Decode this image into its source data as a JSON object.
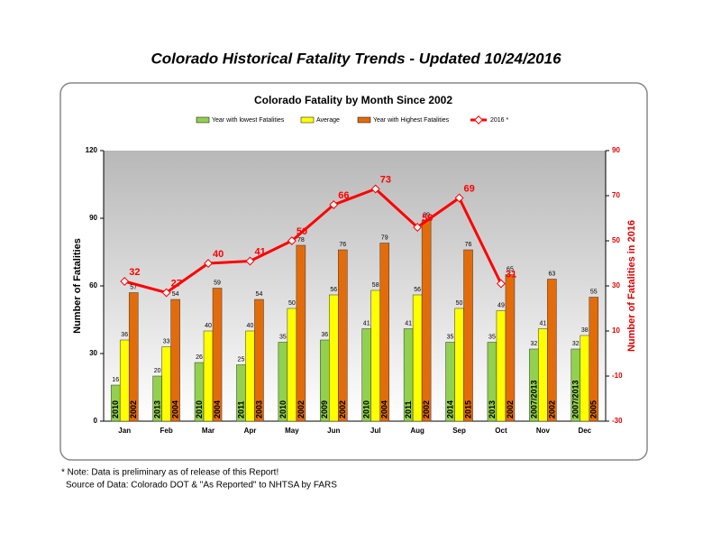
{
  "chart_data": {
    "type": "bar-line",
    "title": "Colorado Historical Fatality Trends - Updated 10/24/2016",
    "subtitle": "Colorado Fatality by Month Since 2002",
    "ylabel": "Number of Fatalities",
    "y2label": "Number of Fatalities in 2016",
    "categories": [
      "Jan",
      "Feb",
      "Mar",
      "Apr",
      "May",
      "Jun",
      "Jul",
      "Aug",
      "Sep",
      "Oct",
      "Nov",
      "Dec"
    ],
    "series": [
      {
        "name": "Year with lowest Fatalities",
        "color": "#92d050",
        "values": [
          16,
          20,
          26,
          25,
          35,
          36,
          41,
          41,
          35,
          35,
          32,
          32
        ],
        "year_labels": [
          "2010",
          "2013",
          "2010",
          "2011",
          "2010",
          "2009",
          "2010",
          "2011",
          "2014",
          "2013",
          "2007/2013",
          "2007/2013"
        ]
      },
      {
        "name": "Average",
        "color": "#ffff00",
        "values": [
          36,
          33,
          40,
          40,
          50,
          56,
          58,
          56,
          50,
          49,
          41,
          38
        ]
      },
      {
        "name": "Year with Highest Fatalities",
        "color": "#e36c0a",
        "values": [
          57,
          54,
          59,
          54,
          78,
          76,
          79,
          89,
          76,
          65,
          63,
          55
        ],
        "year_labels": [
          "2002",
          "2004",
          "2004",
          "2003",
          "2002",
          "2002",
          "2004",
          "2002",
          "2015",
          "2002",
          "2002",
          "2005"
        ]
      },
      {
        "name": "2016 *",
        "color": "#ff0000",
        "axis": "y2",
        "values": [
          32,
          27,
          40,
          41,
          50,
          66,
          73,
          56,
          69,
          31,
          null,
          null
        ]
      }
    ],
    "ylim": [
      0,
      120
    ],
    "yticks": [
      0,
      30,
      60,
      90,
      120
    ],
    "y2lim": [
      -30,
      90
    ],
    "y2ticks": [
      -30,
      -10,
      10,
      30,
      50,
      70,
      90
    ],
    "grid": false,
    "legend": "top",
    "notes": [
      "* Note: Data is preliminary as of release of this Report!",
      "Source of Data: Colorado DOT & \"As Reported\" to NHTSA by FARS"
    ]
  }
}
